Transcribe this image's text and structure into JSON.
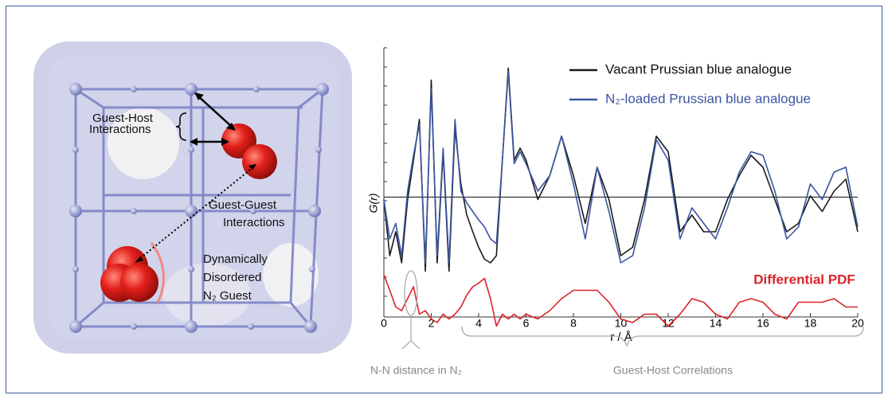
{
  "chart_data": {
    "type": "line",
    "x": [
      0,
      0.25,
      0.5,
      0.75,
      1,
      1.25,
      1.5,
      1.75,
      2,
      2.25,
      2.5,
      2.75,
      3,
      3.25,
      3.5,
      3.75,
      4,
      4.25,
      4.5,
      4.75,
      5,
      5.25,
      5.5,
      5.75,
      6,
      6.5,
      7,
      7.5,
      8,
      8.5,
      9,
      9.5,
      10,
      10.5,
      11,
      11.5,
      12,
      12.5,
      13,
      13.5,
      14,
      14.5,
      15,
      15.5,
      16,
      16.5,
      17,
      17.5,
      18,
      18.5,
      19,
      19.5,
      20
    ],
    "series": [
      {
        "name": "Vacant Prussian blue analogue",
        "color": "#1a1a1a",
        "values": [
          -0.2,
          -4.9,
          -2.9,
          -5.5,
          -0.2,
          3.1,
          6.5,
          -6.2,
          9.8,
          -5.5,
          3.8,
          -6.2,
          5.8,
          1.1,
          -1.5,
          -2.9,
          -4.2,
          -5.2,
          -5.5,
          -4.9,
          3.1,
          10.8,
          3.1,
          4.1,
          3.1,
          -0.2,
          1.8,
          5.1,
          1.8,
          -2.2,
          2.5,
          -0.2,
          -4.9,
          -4.2,
          -0.2,
          5.1,
          3.8,
          -2.9,
          -1.5,
          -2.9,
          -2.9,
          -0.2,
          1.8,
          3.5,
          2.5,
          -0.2,
          -2.9,
          -2.2,
          0.1,
          -1.2,
          0.5,
          1.5,
          -2.9
        ]
      },
      {
        "name": "N₂-loaded Prussian blue analogue",
        "color": "#3a54a0",
        "values": [
          -0.2,
          -3.5,
          -2.2,
          -4.9,
          0.5,
          3.5,
          6.1,
          -5.5,
          9.1,
          -4.9,
          4.1,
          -5.5,
          6.5,
          0.5,
          -0.5,
          -1.2,
          -1.9,
          -2.5,
          -3.5,
          -3.9,
          3.1,
          10.5,
          2.8,
          3.8,
          2.8,
          0.5,
          1.8,
          5.1,
          1.1,
          -3.5,
          2.5,
          -1.2,
          -5.5,
          -4.9,
          -0.9,
          4.8,
          3.1,
          -3.5,
          -0.9,
          -2.2,
          -3.5,
          -0.9,
          2.1,
          3.8,
          3.5,
          0.5,
          -3.5,
          -2.5,
          1.1,
          -0.2,
          2.1,
          2.5,
          -2.5
        ]
      },
      {
        "name": "Differential PDF",
        "color": "#d9232a",
        "values": [
          -6.5,
          -7.8,
          -9.2,
          -9.5,
          -8.5,
          -7.5,
          -9.8,
          -9.5,
          -10.2,
          -10.5,
          -9.8,
          -10.2,
          -9.8,
          -9.2,
          -8.2,
          -7.5,
          -7.2,
          -6.8,
          -8.5,
          -10.8,
          -9.8,
          -10.2,
          -9.8,
          -10.2,
          -9.8,
          -10.2,
          -9.5,
          -8.5,
          -7.8,
          -7.8,
          -7.8,
          -8.8,
          -10.2,
          -10.5,
          -9.8,
          -9.8,
          -10.8,
          -9.8,
          -8.5,
          -8.8,
          -9.8,
          -10.2,
          -8.8,
          -8.5,
          -8.8,
          -9.8,
          -10.2,
          -8.8,
          -8.8,
          -8.8,
          -8.5,
          -9.2,
          -9.2
        ]
      }
    ],
    "xlim": [
      0,
      20
    ],
    "xticks": [
      0,
      2,
      4,
      6,
      8,
      10,
      12,
      14,
      16,
      18,
      20
    ],
    "ylim": [
      -12,
      12.5
    ],
    "xlabel": "r / Å",
    "ylabel": "G(r)",
    "annotations": {
      "first_peak": "N-N distance in N₂",
      "correlations": "Guest-Host Correlations"
    }
  },
  "illustration": {
    "labels": [
      [
        "Guest-Host",
        "Interactions"
      ],
      [
        "Guest-Guest",
        "Interactions"
      ],
      [
        "Dynamically",
        "Disordered",
        "N₂ Guest"
      ]
    ]
  }
}
